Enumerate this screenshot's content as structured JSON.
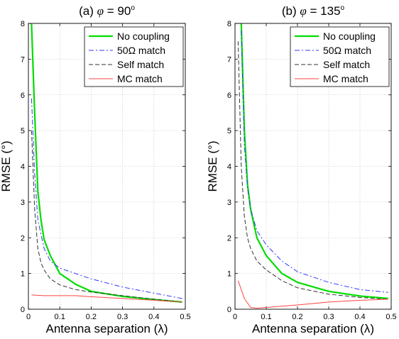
{
  "chart_data": [
    {
      "type": "line",
      "title": "(a) φ = 90°",
      "title_prefix": "(a) ",
      "title_symbol": "φ",
      "title_value": " = 90",
      "title_degree": "o",
      "xlabel": "Antenna separation (λ)",
      "ylabel": "RMSE (°)",
      "xlim": [
        0,
        0.5
      ],
      "ylim": [
        0,
        8
      ],
      "grid": true,
      "legend_position": "top-right",
      "xticks": [
        "0",
        "0.1",
        "0.2",
        "0.3",
        "0.4",
        "0.5"
      ],
      "yticks": [
        "0",
        "1",
        "2",
        "3",
        "4",
        "5",
        "6",
        "7",
        "8"
      ],
      "series": [
        {
          "name": "No coupling",
          "color": "#00dd00",
          "style": "solid",
          "x": [
            0.01,
            0.02,
            0.03,
            0.04,
            0.05,
            0.07,
            0.1,
            0.15,
            0.2,
            0.3,
            0.4,
            0.49
          ],
          "y": [
            8.0,
            5.5,
            3.3,
            2.5,
            1.95,
            1.5,
            1.0,
            0.7,
            0.5,
            0.36,
            0.27,
            0.2
          ]
        },
        {
          "name": "50Ω match",
          "color": "#3333ff",
          "style": "dashdot",
          "x": [
            0.01,
            0.02,
            0.03,
            0.05,
            0.07,
            0.1,
            0.15,
            0.2,
            0.3,
            0.4,
            0.49
          ],
          "y": [
            5.9,
            3.8,
            2.5,
            1.7,
            1.35,
            1.15,
            1.0,
            0.85,
            0.62,
            0.45,
            0.3
          ]
        },
        {
          "name": "Self match",
          "color": "#333333",
          "style": "dashed",
          "x": [
            0.01,
            0.02,
            0.03,
            0.04,
            0.05,
            0.07,
            0.1,
            0.15,
            0.2,
            0.3,
            0.4,
            0.49
          ],
          "y": [
            5.0,
            2.8,
            1.7,
            1.3,
            1.1,
            0.85,
            0.68,
            0.55,
            0.48,
            0.38,
            0.28,
            0.2
          ]
        },
        {
          "name": "MC match",
          "color": "#ff4444",
          "style": "solid",
          "x": [
            0.01,
            0.05,
            0.1,
            0.15,
            0.2,
            0.3,
            0.4,
            0.49
          ],
          "y": [
            0.4,
            0.38,
            0.38,
            0.38,
            0.35,
            0.3,
            0.25,
            0.2
          ]
        }
      ]
    },
    {
      "type": "line",
      "title": "(b) φ = 135°",
      "title_prefix": "(b) ",
      "title_symbol": "φ",
      "title_value": " = 135",
      "title_degree": "o",
      "xlabel": "Antenna separation (λ)",
      "ylabel": "RMSE (°)",
      "xlim": [
        0,
        0.5
      ],
      "ylim": [
        0,
        8
      ],
      "grid": true,
      "legend_position": "top-right",
      "xticks": [
        "0",
        "0.1",
        "0.2",
        "0.3",
        "0.4",
        "0.5"
      ],
      "yticks": [
        "0",
        "1",
        "2",
        "3",
        "4",
        "5",
        "6",
        "7",
        "8"
      ],
      "series": [
        {
          "name": "No coupling",
          "color": "#00dd00",
          "style": "solid",
          "x": [
            0.02,
            0.03,
            0.04,
            0.05,
            0.07,
            0.1,
            0.15,
            0.2,
            0.3,
            0.4,
            0.49
          ],
          "y": [
            8.0,
            5.0,
            3.5,
            2.8,
            2.0,
            1.5,
            1.0,
            0.75,
            0.5,
            0.37,
            0.3
          ]
        },
        {
          "name": "50Ω match",
          "color": "#3333ff",
          "style": "dashdot",
          "x": [
            0.02,
            0.03,
            0.04,
            0.05,
            0.07,
            0.1,
            0.15,
            0.2,
            0.3,
            0.4,
            0.49
          ],
          "y": [
            7.8,
            4.6,
            3.4,
            2.8,
            2.2,
            1.8,
            1.35,
            1.05,
            0.75,
            0.55,
            0.47
          ]
        },
        {
          "name": "Self match",
          "color": "#333333",
          "style": "dashed",
          "x": [
            0.01,
            0.02,
            0.03,
            0.04,
            0.05,
            0.07,
            0.1,
            0.15,
            0.2,
            0.3,
            0.4,
            0.49
          ],
          "y": [
            7.5,
            4.0,
            2.6,
            2.0,
            1.7,
            1.35,
            1.1,
            0.8,
            0.6,
            0.42,
            0.33,
            0.28
          ]
        },
        {
          "name": "MC match",
          "color": "#ff4444",
          "style": "solid",
          "x": [
            0.01,
            0.03,
            0.05,
            0.07,
            0.1,
            0.2,
            0.3,
            0.4,
            0.49
          ],
          "y": [
            0.8,
            0.3,
            0.05,
            0.03,
            0.05,
            0.12,
            0.2,
            0.25,
            0.28
          ]
        }
      ]
    }
  ]
}
